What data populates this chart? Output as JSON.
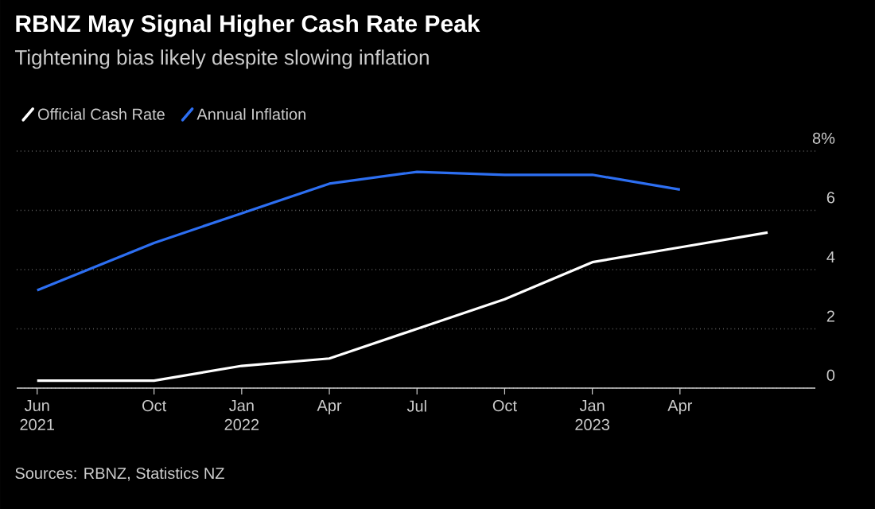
{
  "chart_data": {
    "type": "line",
    "title": "RBNZ May Signal Higher Cash Rate Peak",
    "subtitle": "Tightening bias likely despite slowing inflation",
    "series": [
      {
        "name": "Official Cash Rate",
        "color": "#ffffff",
        "x": [
          "2021-06",
          "2021-10",
          "2022-01",
          "2022-04",
          "2022-07",
          "2022-10",
          "2023-01",
          "2023-04",
          "2023-07"
        ],
        "values": [
          0.25,
          0.25,
          0.75,
          1.0,
          2.0,
          3.0,
          4.25,
          4.75,
          5.25
        ]
      },
      {
        "name": "Annual Inflation",
        "color": "#2d6ff2",
        "x": [
          "2021-06",
          "2021-10",
          "2022-01",
          "2022-04",
          "2022-07",
          "2022-10",
          "2023-01",
          "2023-04"
        ],
        "values": [
          3.3,
          4.9,
          5.9,
          6.9,
          7.3,
          7.2,
          7.2,
          6.7
        ]
      }
    ],
    "xlim": [
      "2021-05-10",
      "2023-08-20"
    ],
    "xticks": [
      {
        "value": "2021-06",
        "label": "Jun 2021"
      },
      {
        "value": "2021-10",
        "label": "Oct"
      },
      {
        "value": "2022-01",
        "label": "Jan 2022"
      },
      {
        "value": "2022-04",
        "label": "Apr"
      },
      {
        "value": "2022-07",
        "label": "Jul"
      },
      {
        "value": "2022-10",
        "label": "Oct"
      },
      {
        "value": "2023-01",
        "label": "Jan 2023"
      },
      {
        "value": "2023-04",
        "label": "Apr"
      }
    ],
    "ylim": [
      0,
      8
    ],
    "yticks": [
      0,
      2,
      4,
      6,
      {
        "value": 8,
        "label": "8%"
      }
    ],
    "grid": "y",
    "legend": "top left",
    "marker": "none",
    "line_style": "solid",
    "annotations": [
      "Sources: RBNZ, Statistics NZ"
    ]
  }
}
